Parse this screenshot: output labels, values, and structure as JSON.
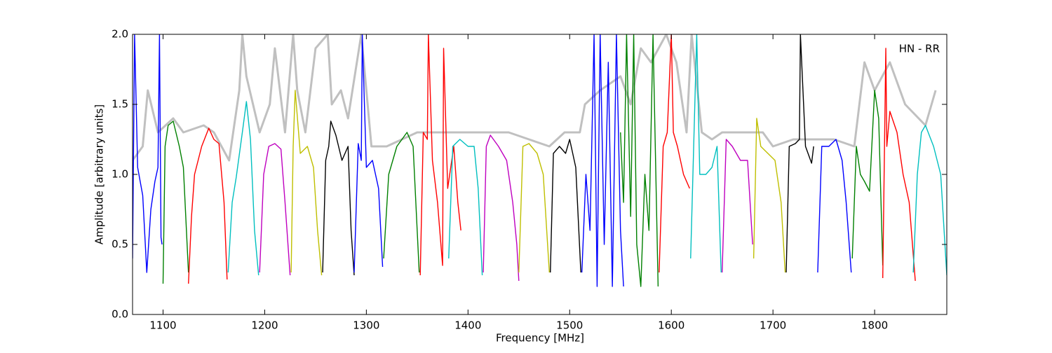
{
  "chart_data": {
    "type": "line",
    "xlabel": "Frequency [MHz]",
    "ylabel": "Amplitude [arbitrary units]",
    "annotation": "HN - RR",
    "xlim": [
      1070,
      1871
    ],
    "ylim": [
      0,
      2
    ],
    "xticks": [
      1100,
      1200,
      1300,
      1400,
      1500,
      1600,
      1700,
      1800
    ],
    "yticks": [
      {
        "value": 0,
        "label": "0.0"
      },
      {
        "value": 0.5,
        "label": "0.5"
      },
      {
        "value": 1,
        "label": "1.0"
      },
      {
        "value": 1.5,
        "label": "1.5"
      },
      {
        "value": 2,
        "label": "2.0"
      }
    ],
    "series": [
      {
        "color": "#c0c0c0",
        "x": [
          1070,
          1080,
          1085,
          1095,
          1110,
          1120,
          1140,
          1150,
          1165,
          1175,
          1178,
          1182,
          1195,
          1205,
          1210,
          1220,
          1228,
          1232,
          1240,
          1250,
          1262,
          1266,
          1275,
          1282,
          1295,
          1305,
          1320,
          1350,
          1380,
          1400,
          1420,
          1440,
          1460,
          1480,
          1495,
          1500,
          1510,
          1515,
          1530,
          1550,
          1560,
          1570,
          1580,
          1595,
          1605,
          1615,
          1620,
          1630,
          1640,
          1650,
          1670,
          1690,
          1700,
          1720,
          1740,
          1760,
          1780,
          1790,
          1800,
          1815,
          1830,
          1850,
          1860
        ],
        "values": [
          1.1,
          1.2,
          1.6,
          1.3,
          1.4,
          1.3,
          1.35,
          1.3,
          1.1,
          1.6,
          2.0,
          1.7,
          1.3,
          1.5,
          1.9,
          1.3,
          2.0,
          1.6,
          1.3,
          1.9,
          2.0,
          1.5,
          1.6,
          1.4,
          2.0,
          1.2,
          1.2,
          1.3,
          1.3,
          1.3,
          1.3,
          1.3,
          1.25,
          1.2,
          1.3,
          1.3,
          1.3,
          1.5,
          1.6,
          1.7,
          1.5,
          1.9,
          1.8,
          2.0,
          1.8,
          1.3,
          2.0,
          1.3,
          1.25,
          1.3,
          1.3,
          1.3,
          1.2,
          1.25,
          1.25,
          1.25,
          1.2,
          1.8,
          1.6,
          1.8,
          1.5,
          1.35,
          1.6
        ]
      },
      {
        "color": "#0000ff",
        "x": [
          1070,
          1072,
          1075,
          1080,
          1084,
          1088,
          1092,
          1095,
          1096.5,
          1098,
          1099
        ],
        "values": [
          0.4,
          2.0,
          1.05,
          0.85,
          0.3,
          0.75,
          0.95,
          1.05,
          2.0,
          0.55,
          0.5
        ]
      },
      {
        "color": "#008000",
        "x": [
          1100,
          1102,
          1105,
          1110,
          1116,
          1120,
          1123,
          1125
        ],
        "values": [
          0.22,
          1.2,
          1.35,
          1.38,
          1.2,
          1.05,
          0.6,
          0.3
        ]
      },
      {
        "color": "#ff0000",
        "x": [
          1125,
          1128,
          1131,
          1138,
          1145,
          1150,
          1155,
          1160,
          1163
        ],
        "values": [
          0.22,
          0.7,
          1.0,
          1.2,
          1.33,
          1.25,
          1.22,
          0.8,
          0.25
        ]
      },
      {
        "color": "#00bfbf",
        "x": [
          1164,
          1168,
          1172,
          1178,
          1182,
          1186,
          1190,
          1194
        ],
        "values": [
          0.3,
          0.8,
          0.98,
          1.3,
          1.52,
          1.25,
          0.6,
          0.28
        ]
      },
      {
        "color": "#bf00bf",
        "x": [
          1195,
          1199,
          1204,
          1210,
          1216,
          1220,
          1225
        ],
        "values": [
          0.3,
          1.0,
          1.2,
          1.22,
          1.18,
          0.8,
          0.28
        ]
      },
      {
        "color": "#bfbf00",
        "x": [
          1226,
          1228,
          1230,
          1235,
          1242,
          1248,
          1252,
          1256
        ],
        "values": [
          0.3,
          1.2,
          1.6,
          1.15,
          1.2,
          1.05,
          0.6,
          0.28
        ]
      },
      {
        "color": "#000000",
        "x": [
          1257,
          1260,
          1263,
          1265,
          1270,
          1276,
          1282,
          1285,
          1288
        ],
        "values": [
          0.3,
          1.1,
          1.2,
          1.38,
          1.28,
          1.1,
          1.2,
          0.6,
          0.28
        ]
      },
      {
        "color": "#0000ff",
        "x": [
          1288,
          1292,
          1295,
          1296,
          1300,
          1306,
          1312,
          1316
        ],
        "values": [
          0.3,
          1.22,
          1.1,
          2.0,
          1.05,
          1.1,
          0.9,
          0.34
        ]
      },
      {
        "color": "#008000",
        "x": [
          1317,
          1322,
          1330,
          1340,
          1346,
          1350,
          1352
        ],
        "values": [
          0.4,
          1.0,
          1.2,
          1.3,
          1.2,
          0.6,
          0.3
        ]
      },
      {
        "color": "#ff0000",
        "x": [
          1353,
          1356,
          1360,
          1361,
          1365,
          1370,
          1375,
          1376,
          1380,
          1386,
          1390,
          1393
        ],
        "values": [
          0.28,
          1.3,
          1.25,
          2.0,
          1.1,
          0.8,
          0.35,
          1.9,
          0.9,
          1.2,
          0.8,
          0.6
        ]
      },
      {
        "color": "#00bfbf",
        "x": [
          1381,
          1385,
          1392,
          1400,
          1406,
          1410,
          1414
        ],
        "values": [
          0.4,
          1.2,
          1.25,
          1.2,
          1.2,
          0.9,
          0.28
        ]
      },
      {
        "color": "#bf00bf",
        "x": [
          1415,
          1418,
          1422,
          1430,
          1438,
          1444,
          1448,
          1450
        ],
        "values": [
          0.3,
          1.2,
          1.28,
          1.2,
          1.1,
          0.8,
          0.5,
          0.24
        ]
      },
      {
        "color": "#bfbf00",
        "x": [
          1450,
          1454,
          1460,
          1468,
          1474,
          1480
        ],
        "values": [
          0.3,
          1.2,
          1.22,
          1.15,
          1.0,
          0.3
        ]
      },
      {
        "color": "#000000",
        "x": [
          1481,
          1484,
          1490,
          1496,
          1500,
          1506,
          1511
        ],
        "values": [
          0.3,
          1.15,
          1.2,
          1.15,
          1.25,
          1.05,
          0.3
        ]
      },
      {
        "color": "#0000ff",
        "x": [
          1512,
          1516,
          1520,
          1524,
          1527,
          1530,
          1534,
          1538,
          1542,
          1546,
          1550,
          1553
        ],
        "values": [
          0.3,
          1.0,
          0.6,
          2.0,
          0.2,
          2.0,
          0.5,
          1.8,
          0.2,
          2.0,
          0.6,
          0.2
        ]
      },
      {
        "color": "#008000",
        "x": [
          1550,
          1553,
          1556,
          1560,
          1563,
          1566,
          1570,
          1574,
          1578,
          1582,
          1587
        ],
        "values": [
          1.3,
          0.8,
          2.0,
          0.7,
          2.0,
          0.5,
          0.2,
          1.0,
          0.6,
          2.0,
          0.2
        ]
      },
      {
        "color": "#ff0000",
        "x": [
          1588,
          1592,
          1596,
          1600,
          1602,
          1606,
          1612,
          1618
        ],
        "values": [
          0.3,
          1.2,
          1.3,
          2.0,
          1.3,
          1.2,
          1.0,
          0.9
        ]
      },
      {
        "color": "#00bfbf",
        "x": [
          1619,
          1622,
          1625,
          1628,
          1634,
          1640,
          1645,
          1649
        ],
        "values": [
          0.4,
          1.2,
          2.0,
          1.0,
          1.0,
          1.05,
          1.2,
          0.3
        ]
      },
      {
        "color": "#bf00bf",
        "x": [
          1650,
          1654,
          1660,
          1668,
          1675,
          1680
        ],
        "values": [
          0.3,
          1.25,
          1.2,
          1.1,
          1.1,
          0.5
        ]
      },
      {
        "color": "#bfbf00",
        "x": [
          1681,
          1684,
          1688,
          1695,
          1702,
          1708,
          1712
        ],
        "values": [
          0.4,
          1.4,
          1.2,
          1.15,
          1.1,
          0.8,
          0.3
        ]
      },
      {
        "color": "#000000",
        "x": [
          1713,
          1716,
          1722,
          1726,
          1727,
          1732,
          1738,
          1740
        ],
        "values": [
          0.3,
          1.2,
          1.22,
          1.25,
          2.0,
          1.2,
          1.08,
          1.2
        ]
      },
      {
        "color": "#0000ff",
        "x": [
          1744,
          1748,
          1755,
          1762,
          1768,
          1772,
          1777
        ],
        "values": [
          0.3,
          1.2,
          1.2,
          1.25,
          1.1,
          0.8,
          0.3
        ]
      },
      {
        "color": "#008000",
        "x": [
          1778,
          1782,
          1786,
          1790,
          1795,
          1800,
          1804,
          1808
        ],
        "values": [
          0.4,
          1.2,
          1.0,
          0.95,
          0.88,
          1.6,
          1.4,
          0.35
        ]
      },
      {
        "color": "#ff0000",
        "x": [
          1808,
          1811,
          1812,
          1815,
          1822,
          1828,
          1834,
          1840
        ],
        "values": [
          0.26,
          1.9,
          1.2,
          1.45,
          1.3,
          1.0,
          0.8,
          0.24
        ]
      },
      {
        "color": "#00bfbf",
        "x": [
          1838,
          1842,
          1846,
          1850,
          1858,
          1865,
          1871
        ],
        "values": [
          0.3,
          1.0,
          1.3,
          1.35,
          1.2,
          1.0,
          0.28
        ]
      }
    ]
  }
}
